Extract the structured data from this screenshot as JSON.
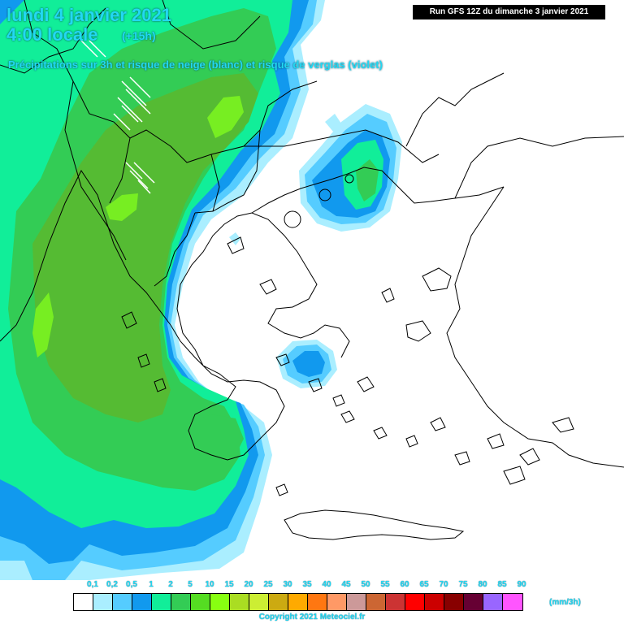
{
  "header": {
    "date": "lundi 4 janvier 2021",
    "time": "4:00 locale",
    "offset": "(+15h)",
    "subtitle": "Précipitations sur 3h et risque de neige (blanc) et risque de verglas (violet)",
    "run": "Run GFS 12Z du dimanche 3 janvier 2021"
  },
  "legend": {
    "unit": "(mm/3h)",
    "ticks": [
      "0,1",
      "0,2",
      "0,5",
      "1",
      "2",
      "5",
      "10",
      "15",
      "20",
      "25",
      "30",
      "35",
      "40",
      "45",
      "50",
      "55",
      "60",
      "65",
      "70",
      "75",
      "80",
      "85",
      "90"
    ],
    "colors": [
      "#ffffff",
      "#aaeeff",
      "#55ccff",
      "#1199ee",
      "#11ee99",
      "#33cc55",
      "#55dd22",
      "#88ff11",
      "#aadd22",
      "#ccee33",
      "#ccaa11",
      "#ffaa00",
      "#ff7711",
      "#ff9966",
      "#cc9999",
      "#cc6633",
      "#cc3333",
      "#ff0000",
      "#cc0000",
      "#880000",
      "#660033",
      "#9966ff",
      "#ff55ff"
    ]
  },
  "footer": {
    "copyright": "Copyright 2021 Meteociel.fr"
  },
  "colors": {
    "light_blue": "#aaeeff",
    "sky": "#55ccff",
    "blue": "#1199ee",
    "aqua_green": "#11ee99",
    "green": "#33cc55",
    "olive_green": "#55bb33",
    "bright_green": "#77ee22",
    "border": "#000000",
    "text": "#22d8f2"
  }
}
